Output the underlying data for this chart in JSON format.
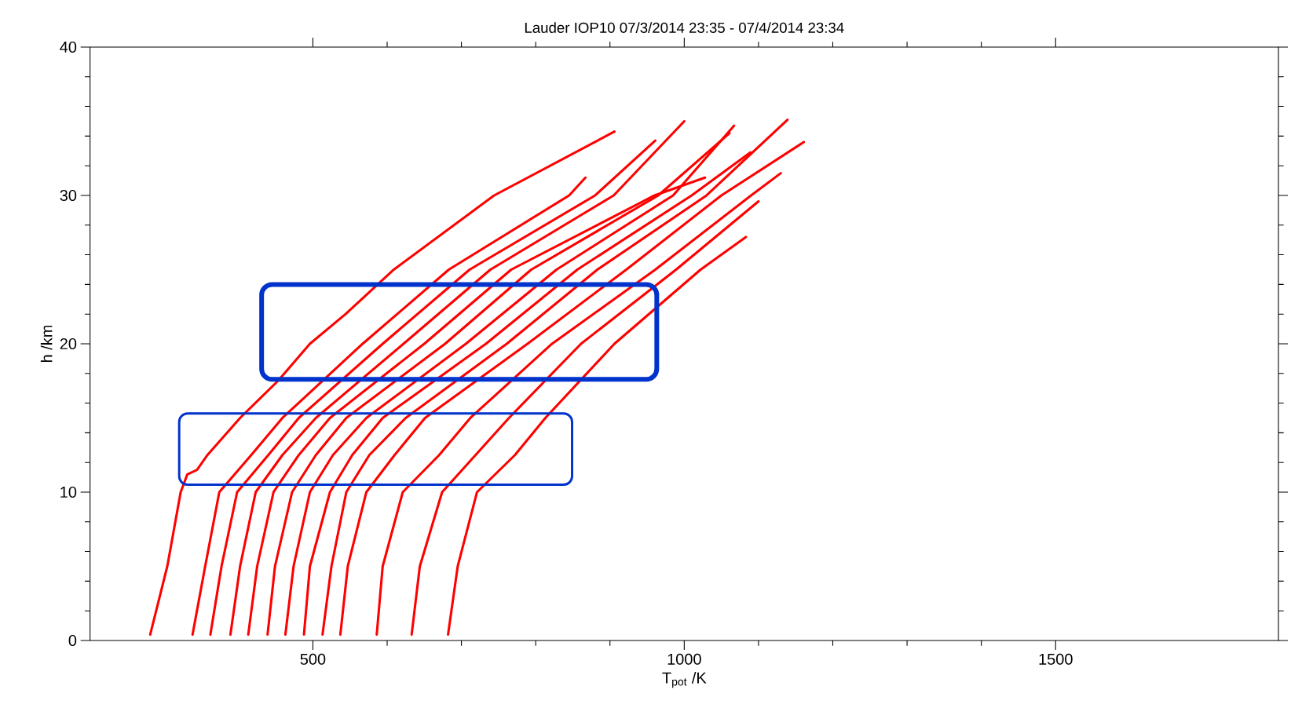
{
  "chart_data": {
    "type": "line",
    "title": "Lauder IOP10 07/3/2014 23:35 -  07/4/2014 23:34",
    "xlabel": "T$_{pot}$ /K",
    "ylabel": "h /km",
    "xlim": [
      200,
      1800
    ],
    "xticks": [
      500,
      1000,
      1500
    ],
    "ylim": [
      0,
      40
    ],
    "yticks": [
      0,
      10,
      20,
      30,
      40
    ],
    "series": [
      {
        "color": "#ff0000",
        "x": [
          281,
          304,
          322,
          331,
          344,
          358,
          402,
          453,
          496,
          544,
          609,
          744,
          906
        ],
        "values": [
          0.4,
          5,
          10,
          11.2,
          11.5,
          12.5,
          15,
          17.5,
          20,
          22,
          25,
          30,
          34.3
        ]
      },
      {
        "color": "#ff0000",
        "x": [
          338,
          355,
          374,
          417,
          459,
          567,
          683,
          845,
          867
        ],
        "values": [
          0.4,
          5,
          10,
          12.5,
          15,
          20,
          25,
          30,
          31.2
        ]
      },
      {
        "color": "#ff0000",
        "x": [
          362,
          377,
          398,
          440,
          481,
          594,
          711,
          880,
          961
        ],
        "values": [
          0.4,
          5,
          10,
          12.5,
          15,
          20,
          25,
          30,
          33.7
        ]
      },
      {
        "color": "#ff0000",
        "x": [
          389,
          402,
          423,
          459,
          504,
          622,
          739,
          905,
          1000
        ],
        "values": [
          0.4,
          5,
          10,
          12.5,
          15,
          20,
          25,
          30,
          35.0
        ]
      },
      {
        "color": "#ff0000",
        "x": [
          413,
          425,
          447,
          481,
          523,
          650,
          767,
          960,
          1028
        ],
        "values": [
          0.4,
          5,
          10,
          12.5,
          15,
          20,
          25,
          30,
          31.2
        ]
      },
      {
        "color": "#ff0000",
        "x": [
          439,
          449,
          472,
          504,
          545,
          678,
          794,
          965,
          1061
        ],
        "values": [
          0.4,
          5,
          10,
          12.5,
          15,
          20,
          25,
          30,
          34.2
        ]
      },
      {
        "color": "#ff0000",
        "x": [
          463,
          474,
          496,
          527,
          572,
          706,
          828,
          985,
          1067
        ],
        "values": [
          0.4,
          5,
          10,
          12.5,
          15,
          20,
          25,
          30,
          34.7
        ]
      },
      {
        "color": "#ff0000",
        "x": [
          488,
          496,
          523,
          553,
          594,
          733,
          856,
          1010,
          1089
        ],
        "values": [
          0.4,
          5,
          10,
          12.5,
          15,
          20,
          25,
          30,
          32.9
        ]
      },
      {
        "color": "#ff0000",
        "x": [
          513,
          525,
          545,
          576,
          625,
          761,
          883,
          1030,
          1139
        ],
        "values": [
          0.4,
          5,
          10,
          12.5,
          15,
          20,
          25,
          30,
          35.1
        ]
      },
      {
        "color": "#ff0000",
        "x": [
          537,
          547,
          572,
          610,
          651,
          789,
          922,
          1050,
          1161
        ],
        "values": [
          0.4,
          5,
          10,
          12.5,
          15,
          20,
          25,
          30,
          33.6
        ]
      },
      {
        "color": "#ff0000",
        "x": [
          586,
          594,
          621,
          670,
          712,
          822,
          961,
          1090,
          1130
        ],
        "values": [
          0.4,
          5,
          10,
          12.5,
          15,
          20,
          25,
          30,
          31.5
        ]
      },
      {
        "color": "#ff0000",
        "x": [
          633,
          644,
          674,
          719,
          764,
          861,
          989,
          1100
        ],
        "values": [
          0.4,
          5,
          10,
          12.5,
          15,
          20,
          25,
          29.6
        ]
      },
      {
        "color": "#ff0000",
        "x": [
          682,
          695,
          721,
          772,
          813,
          906,
          1022,
          1083
        ],
        "values": [
          0.4,
          5,
          10,
          12.5,
          15,
          20,
          25,
          27.2
        ]
      }
    ]
  }
}
